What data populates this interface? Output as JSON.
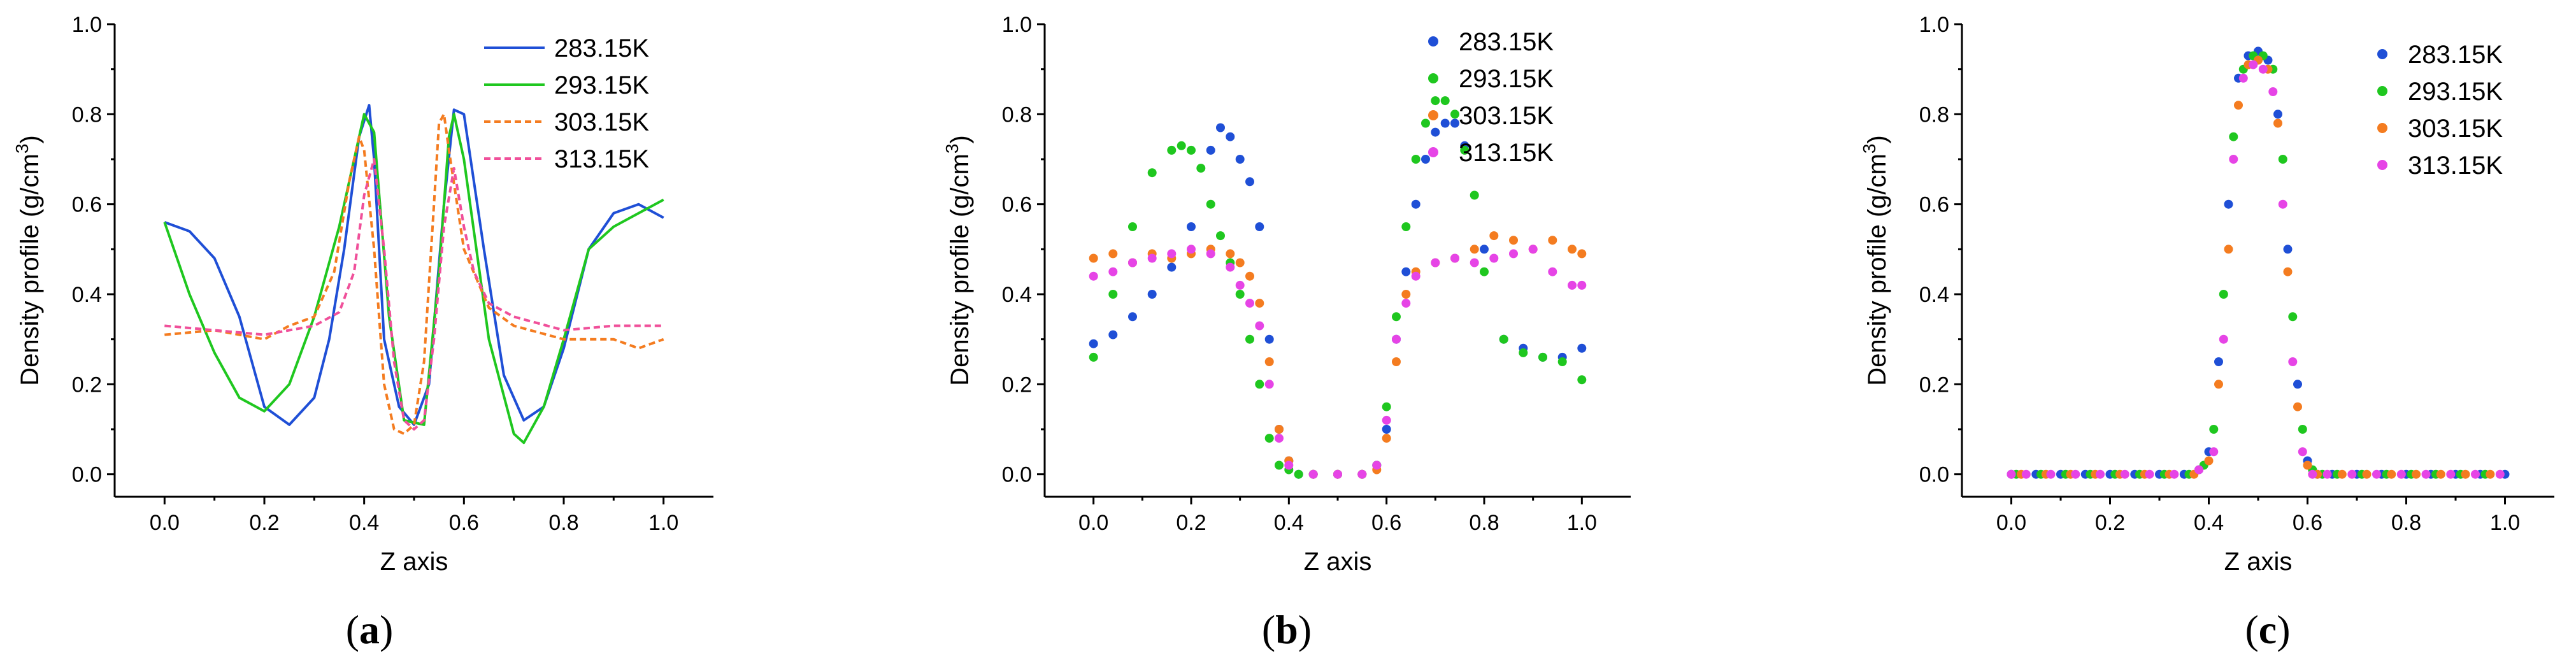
{
  "chart_data": [
    {
      "type": "line",
      "panel": "a",
      "caption_open": "(",
      "caption_letter": "a",
      "caption_close": ")",
      "xlabel": "Z axis",
      "ylabel": "Density profile (g/cm",
      "ylabel_sup": "3",
      "ylabel_close": ")",
      "xlim": [
        -0.1,
        1.1
      ],
      "ylim": [
        -0.05,
        1.0
      ],
      "xticks": [
        "0.0",
        "0.2",
        "0.4",
        "0.6",
        "0.8",
        "1.0"
      ],
      "yticks": [
        "0.0",
        "0.2",
        "0.4",
        "0.6",
        "0.8",
        "1.0"
      ],
      "legend_position": "top-right",
      "series": [
        {
          "name": "283.15K",
          "color": "#1f4fd6",
          "style": "solid",
          "x": [
            0.0,
            0.05,
            0.1,
            0.15,
            0.2,
            0.25,
            0.3,
            0.33,
            0.36,
            0.39,
            0.41,
            0.42,
            0.44,
            0.47,
            0.5,
            0.53,
            0.56,
            0.58,
            0.6,
            0.64,
            0.68,
            0.72,
            0.76,
            0.8,
            0.85,
            0.9,
            0.95,
            1.0
          ],
          "y": [
            0.56,
            0.54,
            0.48,
            0.35,
            0.15,
            0.11,
            0.17,
            0.3,
            0.5,
            0.75,
            0.82,
            0.7,
            0.3,
            0.15,
            0.11,
            0.2,
            0.6,
            0.81,
            0.8,
            0.5,
            0.22,
            0.12,
            0.15,
            0.28,
            0.5,
            0.58,
            0.6,
            0.57
          ]
        },
        {
          "name": "293.15K",
          "color": "#1fc71f",
          "style": "solid",
          "x": [
            0.0,
            0.05,
            0.1,
            0.15,
            0.2,
            0.25,
            0.3,
            0.35,
            0.38,
            0.4,
            0.42,
            0.45,
            0.48,
            0.52,
            0.55,
            0.57,
            0.58,
            0.6,
            0.65,
            0.7,
            0.72,
            0.76,
            0.8,
            0.85,
            0.9,
            0.95,
            1.0
          ],
          "y": [
            0.56,
            0.4,
            0.27,
            0.17,
            0.14,
            0.2,
            0.35,
            0.55,
            0.7,
            0.8,
            0.76,
            0.35,
            0.12,
            0.11,
            0.45,
            0.75,
            0.8,
            0.7,
            0.3,
            0.09,
            0.07,
            0.15,
            0.3,
            0.5,
            0.55,
            0.58,
            0.61
          ]
        },
        {
          "name": "303.15K",
          "color": "#f47c20",
          "style": "dashed",
          "x": [
            0.0,
            0.1,
            0.2,
            0.25,
            0.3,
            0.34,
            0.37,
            0.39,
            0.4,
            0.42,
            0.44,
            0.46,
            0.48,
            0.5,
            0.52,
            0.54,
            0.55,
            0.56,
            0.57,
            0.6,
            0.65,
            0.7,
            0.8,
            0.9,
            0.95,
            1.0
          ],
          "y": [
            0.31,
            0.32,
            0.3,
            0.33,
            0.35,
            0.45,
            0.65,
            0.75,
            0.72,
            0.5,
            0.2,
            0.1,
            0.09,
            0.11,
            0.25,
            0.6,
            0.78,
            0.8,
            0.72,
            0.5,
            0.37,
            0.33,
            0.3,
            0.3,
            0.28,
            0.3
          ]
        },
        {
          "name": "313.15K",
          "color": "#f0509a",
          "style": "dashed",
          "x": [
            0.0,
            0.1,
            0.2,
            0.3,
            0.35,
            0.38,
            0.4,
            0.42,
            0.44,
            0.46,
            0.48,
            0.5,
            0.52,
            0.54,
            0.56,
            0.58,
            0.6,
            0.62,
            0.65,
            0.7,
            0.8,
            0.9,
            1.0
          ],
          "y": [
            0.33,
            0.32,
            0.31,
            0.33,
            0.36,
            0.45,
            0.62,
            0.7,
            0.5,
            0.25,
            0.12,
            0.1,
            0.12,
            0.3,
            0.55,
            0.68,
            0.55,
            0.45,
            0.38,
            0.35,
            0.32,
            0.33,
            0.33
          ]
        }
      ]
    },
    {
      "type": "scatter",
      "panel": "b",
      "caption_open": "(",
      "caption_letter": "b",
      "caption_close": ")",
      "xlabel": "Z axis",
      "ylabel": "Density profile (g/cm",
      "ylabel_sup": "3",
      "ylabel_close": ")",
      "xlim": [
        -0.1,
        1.1
      ],
      "ylim": [
        -0.05,
        1.0
      ],
      "xticks": [
        "0.0",
        "0.2",
        "0.4",
        "0.6",
        "0.8",
        "1.0"
      ],
      "yticks": [
        "0.0",
        "0.2",
        "0.4",
        "0.6",
        "0.8",
        "1.0"
      ],
      "legend_position": "top-right",
      "series": [
        {
          "name": "283.15K",
          "color": "#1f4fd6",
          "x": [
            0.0,
            0.04,
            0.08,
            0.12,
            0.16,
            0.2,
            0.24,
            0.26,
            0.28,
            0.3,
            0.32,
            0.34,
            0.36,
            0.38,
            0.4,
            0.42,
            0.45,
            0.5,
            0.55,
            0.58,
            0.6,
            0.62,
            0.64,
            0.66,
            0.68,
            0.7,
            0.72,
            0.74,
            0.76,
            0.8,
            0.84,
            0.88,
            0.92,
            0.96,
            1.0
          ],
          "y": [
            0.29,
            0.31,
            0.35,
            0.4,
            0.46,
            0.55,
            0.72,
            0.77,
            0.75,
            0.7,
            0.65,
            0.55,
            0.3,
            0.1,
            0.03,
            0.0,
            0.0,
            0.0,
            0.0,
            0.02,
            0.1,
            0.3,
            0.45,
            0.6,
            0.7,
            0.76,
            0.78,
            0.78,
            0.73,
            0.5,
            0.3,
            0.28,
            0.26,
            0.26,
            0.28
          ]
        },
        {
          "name": "293.15K",
          "color": "#1fc71f",
          "x": [
            0.0,
            0.04,
            0.08,
            0.12,
            0.16,
            0.18,
            0.2,
            0.22,
            0.24,
            0.26,
            0.28,
            0.3,
            0.32,
            0.34,
            0.36,
            0.38,
            0.4,
            0.42,
            0.45,
            0.5,
            0.55,
            0.58,
            0.6,
            0.62,
            0.64,
            0.66,
            0.68,
            0.7,
            0.72,
            0.74,
            0.76,
            0.78,
            0.8,
            0.84,
            0.88,
            0.92,
            0.96,
            1.0
          ],
          "y": [
            0.26,
            0.4,
            0.55,
            0.67,
            0.72,
            0.73,
            0.72,
            0.68,
            0.6,
            0.53,
            0.47,
            0.4,
            0.3,
            0.2,
            0.08,
            0.02,
            0.01,
            0.0,
            0.0,
            0.0,
            0.0,
            0.02,
            0.15,
            0.35,
            0.55,
            0.7,
            0.78,
            0.83,
            0.83,
            0.8,
            0.72,
            0.62,
            0.45,
            0.3,
            0.27,
            0.26,
            0.25,
            0.21
          ]
        },
        {
          "name": "303.15K",
          "color": "#f47c20",
          "x": [
            0.0,
            0.04,
            0.08,
            0.12,
            0.16,
            0.2,
            0.24,
            0.28,
            0.3,
            0.32,
            0.34,
            0.36,
            0.38,
            0.4,
            0.45,
            0.5,
            0.55,
            0.58,
            0.6,
            0.62,
            0.64,
            0.66,
            0.7,
            0.74,
            0.78,
            0.82,
            0.86,
            0.9,
            0.94,
            0.98,
            1.0
          ],
          "y": [
            0.48,
            0.49,
            0.47,
            0.49,
            0.48,
            0.49,
            0.5,
            0.49,
            0.47,
            0.44,
            0.38,
            0.25,
            0.1,
            0.03,
            0.0,
            0.0,
            0.0,
            0.01,
            0.08,
            0.25,
            0.4,
            0.45,
            0.47,
            0.48,
            0.5,
            0.53,
            0.52,
            0.5,
            0.52,
            0.5,
            0.49
          ]
        },
        {
          "name": "313.15K",
          "color": "#e644e6",
          "x": [
            0.0,
            0.04,
            0.08,
            0.12,
            0.16,
            0.2,
            0.24,
            0.28,
            0.3,
            0.32,
            0.34,
            0.36,
            0.38,
            0.4,
            0.45,
            0.5,
            0.55,
            0.58,
            0.6,
            0.62,
            0.64,
            0.66,
            0.7,
            0.74,
            0.78,
            0.82,
            0.86,
            0.9,
            0.94,
            0.98,
            1.0
          ],
          "y": [
            0.44,
            0.45,
            0.47,
            0.48,
            0.49,
            0.5,
            0.49,
            0.46,
            0.42,
            0.38,
            0.33,
            0.2,
            0.08,
            0.02,
            0.0,
            0.0,
            0.0,
            0.02,
            0.12,
            0.3,
            0.38,
            0.44,
            0.47,
            0.48,
            0.47,
            0.48,
            0.49,
            0.5,
            0.45,
            0.42,
            0.42
          ]
        }
      ]
    },
    {
      "type": "scatter",
      "panel": "c",
      "caption_open": "(",
      "caption_letter": "c",
      "caption_close": ")",
      "xlabel": "Z axis",
      "ylabel": "Density profile (g/cm",
      "ylabel_sup": "3",
      "ylabel_close": ")",
      "xlim": [
        -0.1,
        1.1
      ],
      "ylim": [
        -0.05,
        1.0
      ],
      "xticks": [
        "0.0",
        "0.2",
        "0.4",
        "0.6",
        "0.8",
        "1.0"
      ],
      "yticks": [
        "0.0",
        "0.2",
        "0.4",
        "0.6",
        "0.8",
        "1.0"
      ],
      "legend_position": "top-right",
      "series": [
        {
          "name": "283.15K",
          "color": "#1f4fd6",
          "x": [
            0.0,
            0.05,
            0.1,
            0.15,
            0.2,
            0.25,
            0.3,
            0.35,
            0.38,
            0.4,
            0.42,
            0.44,
            0.46,
            0.48,
            0.5,
            0.52,
            0.54,
            0.56,
            0.58,
            0.6,
            0.62,
            0.65,
            0.7,
            0.75,
            0.8,
            0.85,
            0.9,
            0.95,
            1.0
          ],
          "y": [
            0.0,
            0.0,
            0.0,
            0.0,
            0.0,
            0.0,
            0.0,
            0.0,
            0.01,
            0.05,
            0.25,
            0.6,
            0.88,
            0.93,
            0.94,
            0.92,
            0.8,
            0.5,
            0.2,
            0.03,
            0.0,
            0.0,
            0.0,
            0.0,
            0.0,
            0.0,
            0.0,
            0.0,
            0.0
          ]
        },
        {
          "name": "293.15K",
          "color": "#1fc71f",
          "x": [
            0.01,
            0.06,
            0.11,
            0.16,
            0.21,
            0.26,
            0.31,
            0.36,
            0.39,
            0.41,
            0.43,
            0.45,
            0.47,
            0.49,
            0.51,
            0.53,
            0.55,
            0.57,
            0.59,
            0.61,
            0.63,
            0.66,
            0.71,
            0.76,
            0.81,
            0.86,
            0.91,
            0.96
          ],
          "y": [
            0.0,
            0.0,
            0.0,
            0.0,
            0.0,
            0.0,
            0.0,
            0.0,
            0.02,
            0.1,
            0.4,
            0.75,
            0.9,
            0.93,
            0.93,
            0.9,
            0.7,
            0.35,
            0.1,
            0.01,
            0.0,
            0.0,
            0.0,
            0.0,
            0.0,
            0.0,
            0.0,
            0.0
          ]
        },
        {
          "name": "303.15K",
          "color": "#f47c20",
          "x": [
            0.02,
            0.07,
            0.12,
            0.17,
            0.22,
            0.27,
            0.32,
            0.37,
            0.4,
            0.42,
            0.44,
            0.46,
            0.48,
            0.5,
            0.52,
            0.54,
            0.56,
            0.58,
            0.6,
            0.62,
            0.67,
            0.72,
            0.77,
            0.82,
            0.87,
            0.92,
            0.97
          ],
          "y": [
            0.0,
            0.0,
            0.0,
            0.0,
            0.0,
            0.0,
            0.0,
            0.0,
            0.03,
            0.2,
            0.5,
            0.82,
            0.91,
            0.92,
            0.9,
            0.78,
            0.45,
            0.15,
            0.02,
            0.0,
            0.0,
            0.0,
            0.0,
            0.0,
            0.0,
            0.0,
            0.0
          ]
        },
        {
          "name": "313.15K",
          "color": "#e644e6",
          "x": [
            0.0,
            0.03,
            0.08,
            0.13,
            0.18,
            0.23,
            0.28,
            0.33,
            0.38,
            0.41,
            0.43,
            0.45,
            0.47,
            0.49,
            0.51,
            0.53,
            0.55,
            0.57,
            0.59,
            0.61,
            0.64,
            0.69,
            0.74,
            0.79,
            0.84,
            0.89,
            0.94,
            0.99
          ],
          "y": [
            0.0,
            0.0,
            0.0,
            0.0,
            0.0,
            0.0,
            0.0,
            0.0,
            0.01,
            0.05,
            0.3,
            0.7,
            0.88,
            0.91,
            0.9,
            0.85,
            0.6,
            0.25,
            0.05,
            0.0,
            0.0,
            0.0,
            0.0,
            0.0,
            0.0,
            0.0,
            0.0,
            0.0
          ]
        }
      ]
    }
  ]
}
